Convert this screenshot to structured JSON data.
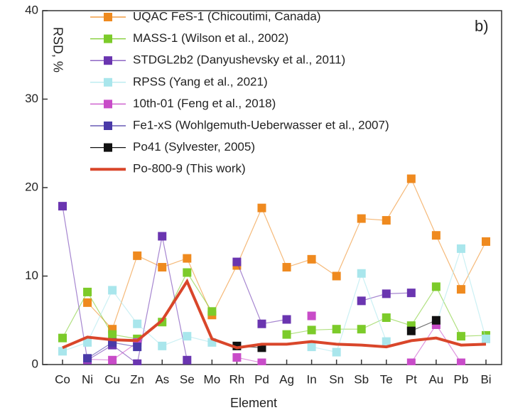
{
  "chart_data": {
    "type": "line",
    "y_label": "RSD, %",
    "x_label": "Element",
    "annotation": "b)",
    "categories": [
      "Co",
      "Ni",
      "Cu",
      "Zn",
      "As",
      "Se",
      "Mo",
      "Rh",
      "Pd",
      "Ag",
      "In",
      "Sn",
      "Sb",
      "Te",
      "Pt",
      "Au",
      "Pb",
      "Bi"
    ],
    "ylim": [
      0,
      40
    ],
    "yticks": [
      0,
      10,
      20,
      30,
      40
    ],
    "legend": "top",
    "series": [
      {
        "name": "UQAC FeS-1 (Chicoutimi, Canada)",
        "color": "#ef8a1f",
        "markers": true,
        "values": [
          null,
          7,
          4,
          12.3,
          11,
          12,
          5.6,
          11.2,
          17.7,
          11,
          11.9,
          10,
          16.5,
          16.3,
          21,
          14.6,
          8.5,
          13.9
        ]
      },
      {
        "name": "MASS-1 (Wilson et al., 2002)",
        "color": "#7ccb2a",
        "markers": true,
        "values": [
          3,
          8.2,
          3.4,
          2.9,
          4.8,
          10.4,
          6,
          null,
          null,
          3.4,
          3.9,
          4,
          4,
          5.3,
          4.4,
          8.8,
          3.2,
          3.3
        ]
      },
      {
        "name": "STDGL2b2 (Danyushevsky et al., 2011)",
        "color": "#6a35b0",
        "markers": true,
        "values": [
          17.9,
          0.5,
          2.2,
          0.1,
          14.5,
          0.5,
          null,
          11.6,
          4.6,
          5.1,
          null,
          null,
          7.2,
          8,
          8.1,
          null,
          null,
          null
        ]
      },
      {
        "name": "RPSS (Yang et al., 2021)",
        "color": "#a9e6ec",
        "markers": true,
        "values": [
          1.5,
          2.5,
          8.4,
          4.6,
          2.1,
          3.2,
          2.5,
          null,
          null,
          null,
          2,
          1.4,
          10.3,
          2.6,
          null,
          4.6,
          13.1,
          2.9
        ]
      },
      {
        "name": "10th-01 (Feng et al., 2018)",
        "color": "#c84cc8",
        "markers": true,
        "values": [
          null,
          0.6,
          0.5,
          2.5,
          null,
          null,
          null,
          0.8,
          0.2,
          null,
          5.5,
          null,
          null,
          null,
          0.2,
          4.5,
          0.2,
          null
        ]
      },
      {
        "name": "Fe1-xS (Wohlgemuth-Ueberwasser et al., 2007)",
        "color": "#4a3aa8",
        "markers": true,
        "values": [
          null,
          0.7,
          2.5,
          2,
          null,
          null,
          null,
          null,
          null,
          null,
          null,
          null,
          null,
          null,
          null,
          null,
          null,
          null
        ]
      },
      {
        "name": "Po41 (Sylvester, 2005)",
        "color": "#111111",
        "markers": true,
        "values": [
          null,
          null,
          null,
          null,
          null,
          null,
          null,
          2.1,
          1.9,
          null,
          null,
          null,
          null,
          null,
          3.8,
          5,
          null,
          null
        ]
      },
      {
        "name": "Po-800-9 (This work)",
        "color": "#d9462a",
        "markers": false,
        "values": [
          1.9,
          3.1,
          2.8,
          2.7,
          5,
          9.4,
          2.9,
          1.9,
          2.3,
          2.3,
          2.6,
          2.3,
          2.2,
          2,
          2.7,
          3,
          2.2,
          2.3
        ]
      }
    ]
  }
}
